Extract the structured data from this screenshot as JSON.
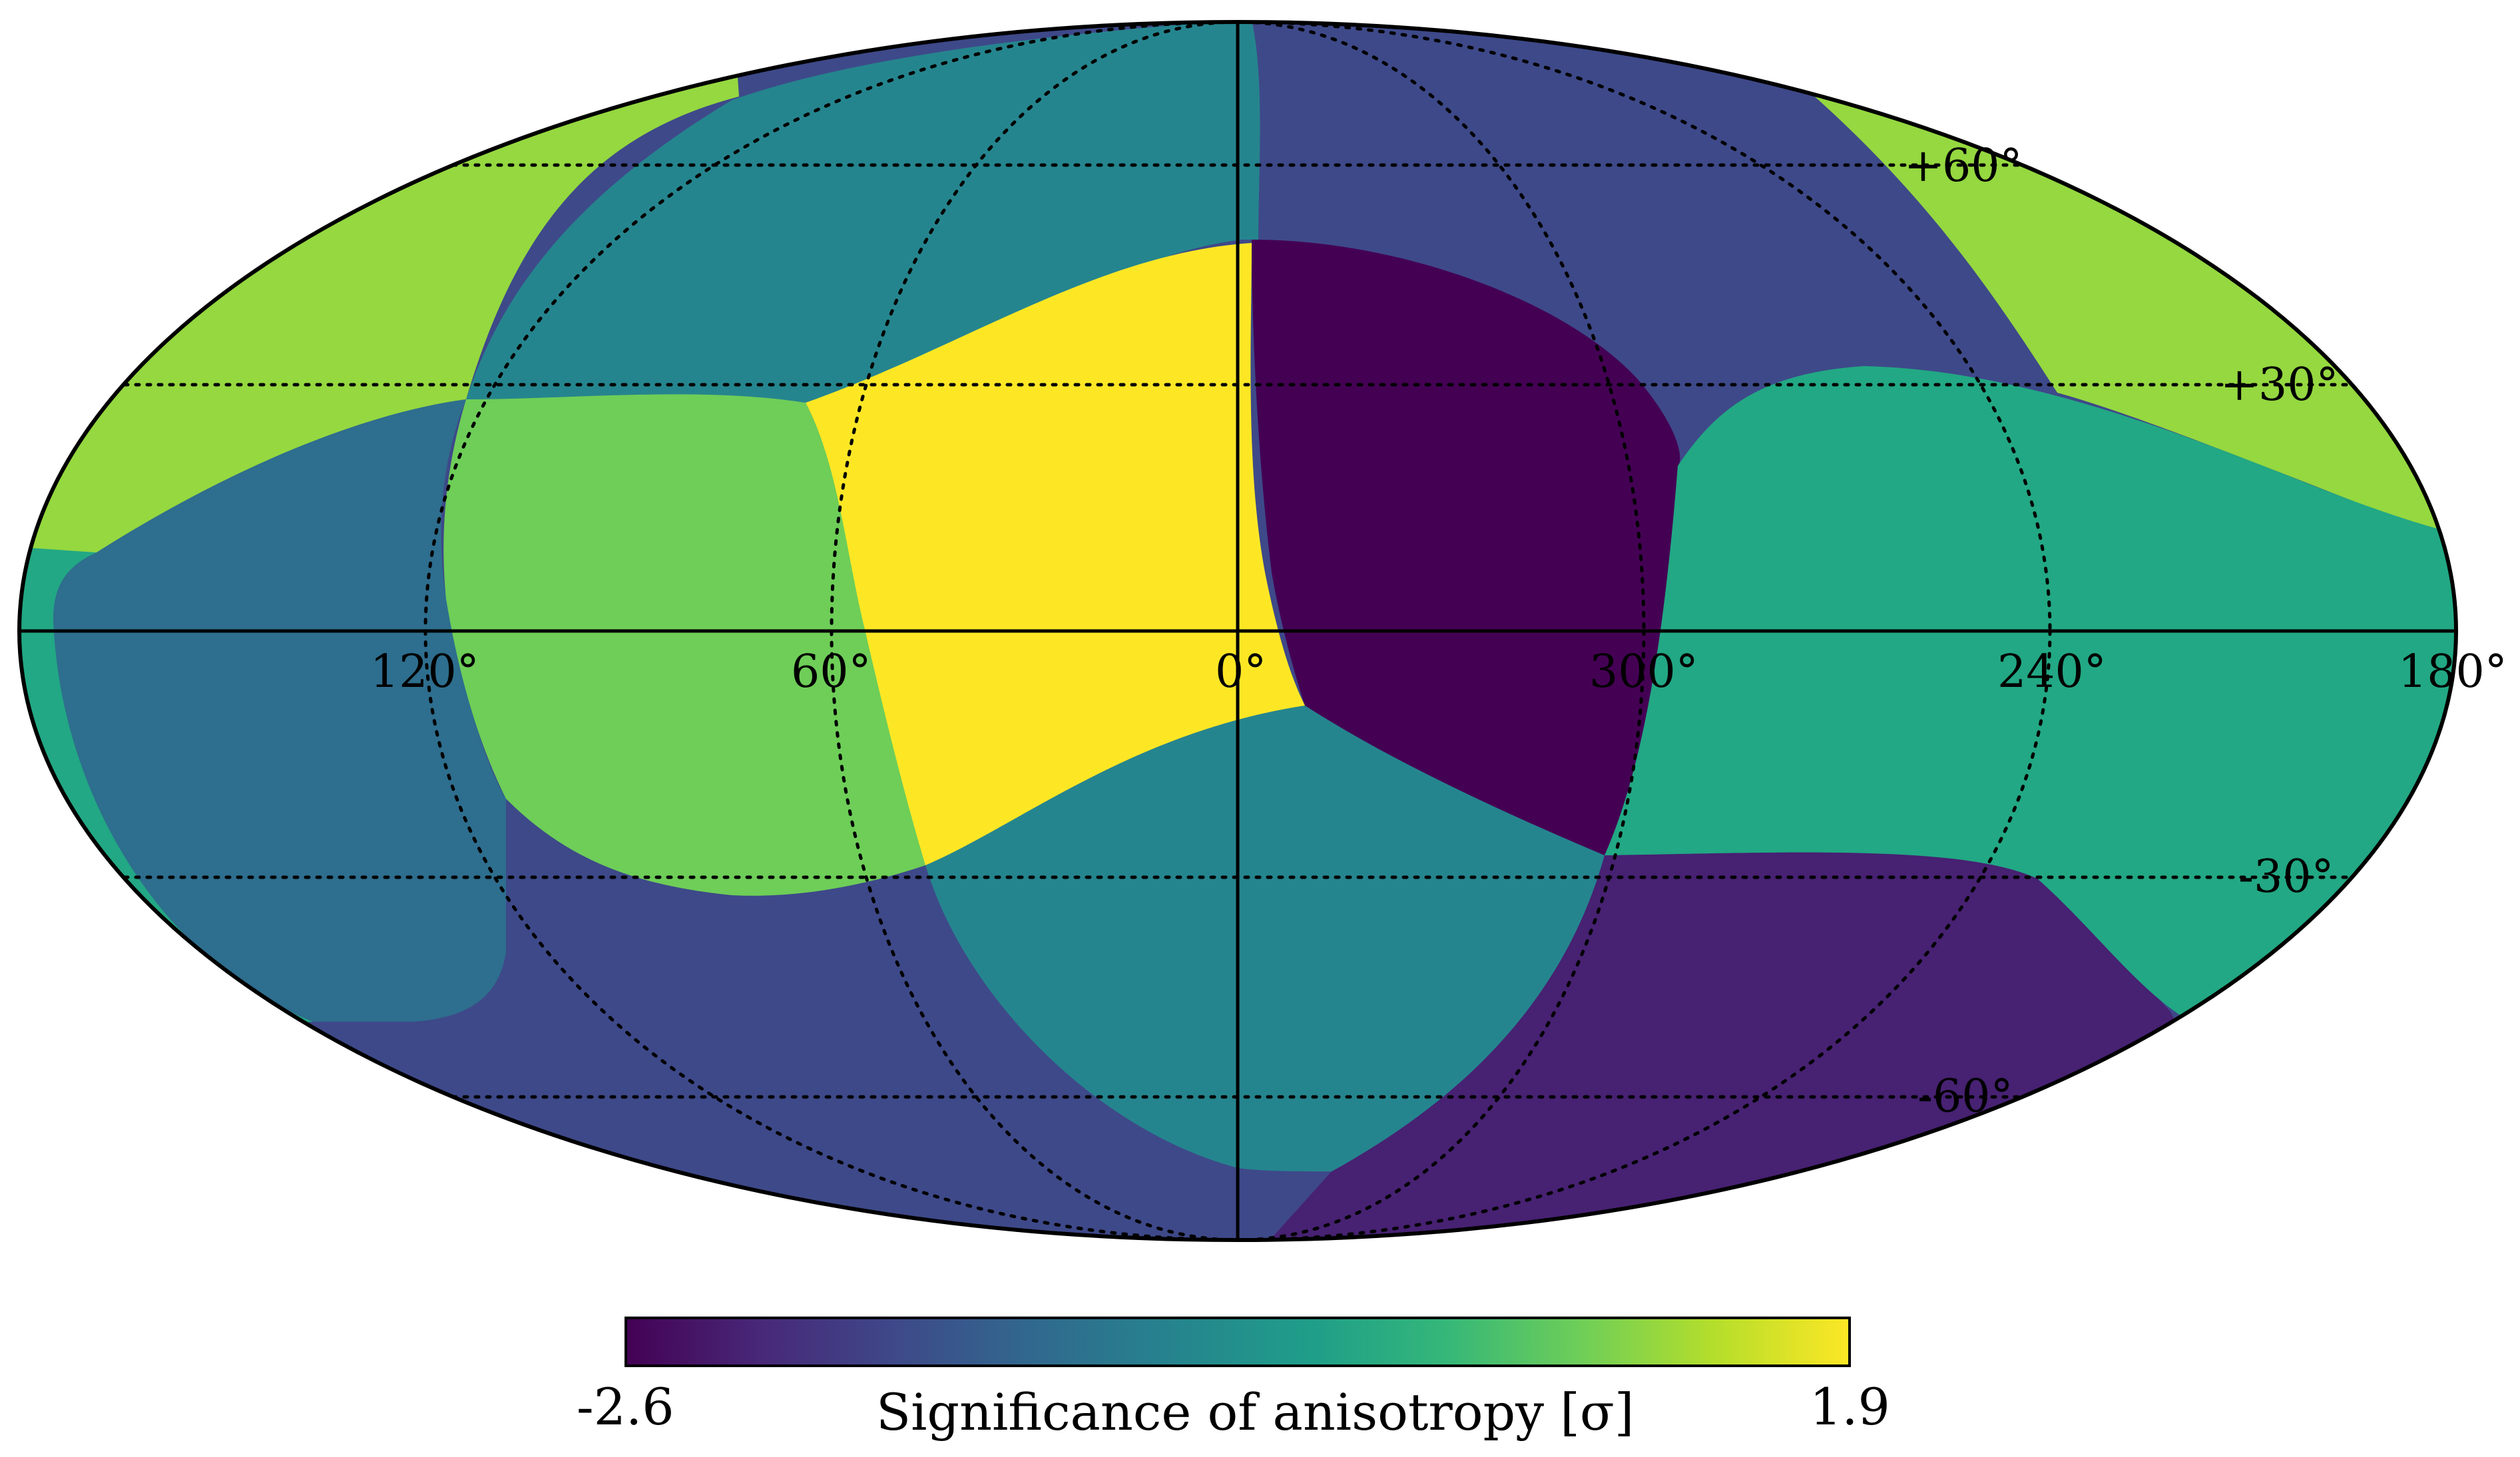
{
  "map": {
    "projection": "mollweide",
    "graticule_style": "dotted",
    "longitude_labels": [
      "120°",
      "60°",
      "0°",
      "300°",
      "240°",
      "180°"
    ],
    "latitude_labels": [
      "+60°",
      "+30°",
      "-30°",
      "-60°"
    ],
    "regions_colors": {
      "yellow": "#fde725",
      "dark_purple": "#440154",
      "light_green": "#95d840",
      "green": "#6ece58",
      "teal": "#22a884",
      "cyan_teal": "#25858e",
      "blue": "#2e6e8e",
      "indigo": "#3e4989",
      "purple": "#472172"
    }
  },
  "colorbar": {
    "min_label": "-2.6",
    "max_label": "1.9",
    "label": "Significance of anisotropy [σ]",
    "colormap": "viridis",
    "stops": [
      "#440154",
      "#482878",
      "#3e4989",
      "#31688e",
      "#26828e",
      "#1f9e89",
      "#35b779",
      "#6ece58",
      "#b5de2b",
      "#fde725"
    ]
  }
}
